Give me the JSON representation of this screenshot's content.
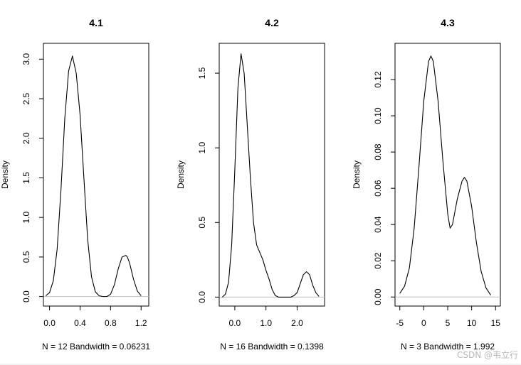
{
  "watermark": "CSDN @韦立行",
  "style": {
    "line_color": "#000000",
    "baseline_color": "#bebebe",
    "text_color": "#000000"
  },
  "chart_data": [
    {
      "type": "line",
      "title": "4.1",
      "ylabel": "Density",
      "xlabel": "N = 12   Bandwidth = 0.06231",
      "xlim": [
        -0.08,
        1.3
      ],
      "ylim": [
        -0.12,
        3.2
      ],
      "xticks": [
        0.0,
        0.4,
        0.8,
        1.2
      ],
      "xtick_labels": [
        "0.0",
        "0.4",
        "0.8",
        "1.2"
      ],
      "yticks": [
        0.0,
        0.5,
        1.0,
        1.5,
        2.0,
        2.5,
        3.0
      ],
      "ytick_labels": [
        "0.0",
        "0.5",
        "1.0",
        "1.5",
        "2.0",
        "2.5",
        "3.0"
      ],
      "x": [
        -0.05,
        0.0,
        0.05,
        0.1,
        0.15,
        0.2,
        0.25,
        0.3,
        0.35,
        0.4,
        0.45,
        0.5,
        0.55,
        0.6,
        0.65,
        0.7,
        0.75,
        0.8,
        0.85,
        0.9,
        0.95,
        1.0,
        1.02,
        1.05,
        1.1,
        1.15,
        1.2
      ],
      "y": [
        0.01,
        0.05,
        0.2,
        0.6,
        1.35,
        2.25,
        2.85,
        3.04,
        2.82,
        2.3,
        1.5,
        0.72,
        0.25,
        0.06,
        0.01,
        0.0,
        0.0,
        0.03,
        0.15,
        0.35,
        0.5,
        0.52,
        0.5,
        0.42,
        0.22,
        0.07,
        0.01
      ]
    },
    {
      "type": "line",
      "title": "4.2",
      "ylabel": "Density",
      "xlabel": "N = 16   Bandwidth = 0.1398",
      "xlim": [
        -0.5,
        2.88
      ],
      "ylim": [
        -0.06,
        1.7
      ],
      "xticks": [
        0.0,
        1.0,
        2.0
      ],
      "xtick_labels": [
        "0.0",
        "1.0",
        "2.0"
      ],
      "yticks": [
        0.0,
        0.5,
        1.0,
        1.5
      ],
      "ytick_labels": [
        "0.0",
        "0.5",
        "1.0",
        "1.5"
      ],
      "x": [
        -0.4,
        -0.3,
        -0.2,
        -0.1,
        0.0,
        0.1,
        0.2,
        0.3,
        0.4,
        0.5,
        0.6,
        0.7,
        0.8,
        0.9,
        1.0,
        1.1,
        1.2,
        1.3,
        1.4,
        1.5,
        1.6,
        1.7,
        1.8,
        1.9,
        2.0,
        2.1,
        2.2,
        2.3,
        2.4,
        2.5,
        2.6,
        2.7
      ],
      "y": [
        0.0,
        0.02,
        0.1,
        0.35,
        0.85,
        1.4,
        1.63,
        1.5,
        1.15,
        0.8,
        0.5,
        0.35,
        0.3,
        0.25,
        0.18,
        0.12,
        0.05,
        0.01,
        0.0,
        0.0,
        0.0,
        0.0,
        0.0,
        0.01,
        0.03,
        0.09,
        0.15,
        0.17,
        0.15,
        0.08,
        0.03,
        0.005
      ]
    },
    {
      "type": "line",
      "title": "4.3",
      "ylabel": "Density",
      "xlabel": "N = 3   Bandwidth = 1.992",
      "xlim": [
        -6.0,
        16.0
      ],
      "ylim": [
        -0.005,
        0.14
      ],
      "xticks": [
        -5,
        0,
        5,
        10,
        15
      ],
      "xtick_labels": [
        "-5",
        "0",
        "5",
        "10",
        "15"
      ],
      "yticks": [
        0.0,
        0.02,
        0.04,
        0.06,
        0.08,
        0.1,
        0.12
      ],
      "ytick_labels": [
        "0.00",
        "0.02",
        "0.04",
        "0.06",
        "0.08",
        "0.10",
        "0.12"
      ],
      "x": [
        -5.0,
        -4.0,
        -3.0,
        -2.0,
        -1.0,
        0.0,
        1.0,
        1.5,
        2.0,
        3.0,
        4.0,
        5.0,
        5.5,
        6.0,
        7.0,
        8.0,
        8.5,
        9.0,
        10.0,
        11.0,
        12.0,
        13.0,
        14.0
      ],
      "y": [
        0.002,
        0.006,
        0.016,
        0.038,
        0.072,
        0.108,
        0.13,
        0.133,
        0.13,
        0.108,
        0.075,
        0.046,
        0.038,
        0.04,
        0.054,
        0.064,
        0.066,
        0.064,
        0.05,
        0.03,
        0.014,
        0.005,
        0.001
      ]
    }
  ]
}
